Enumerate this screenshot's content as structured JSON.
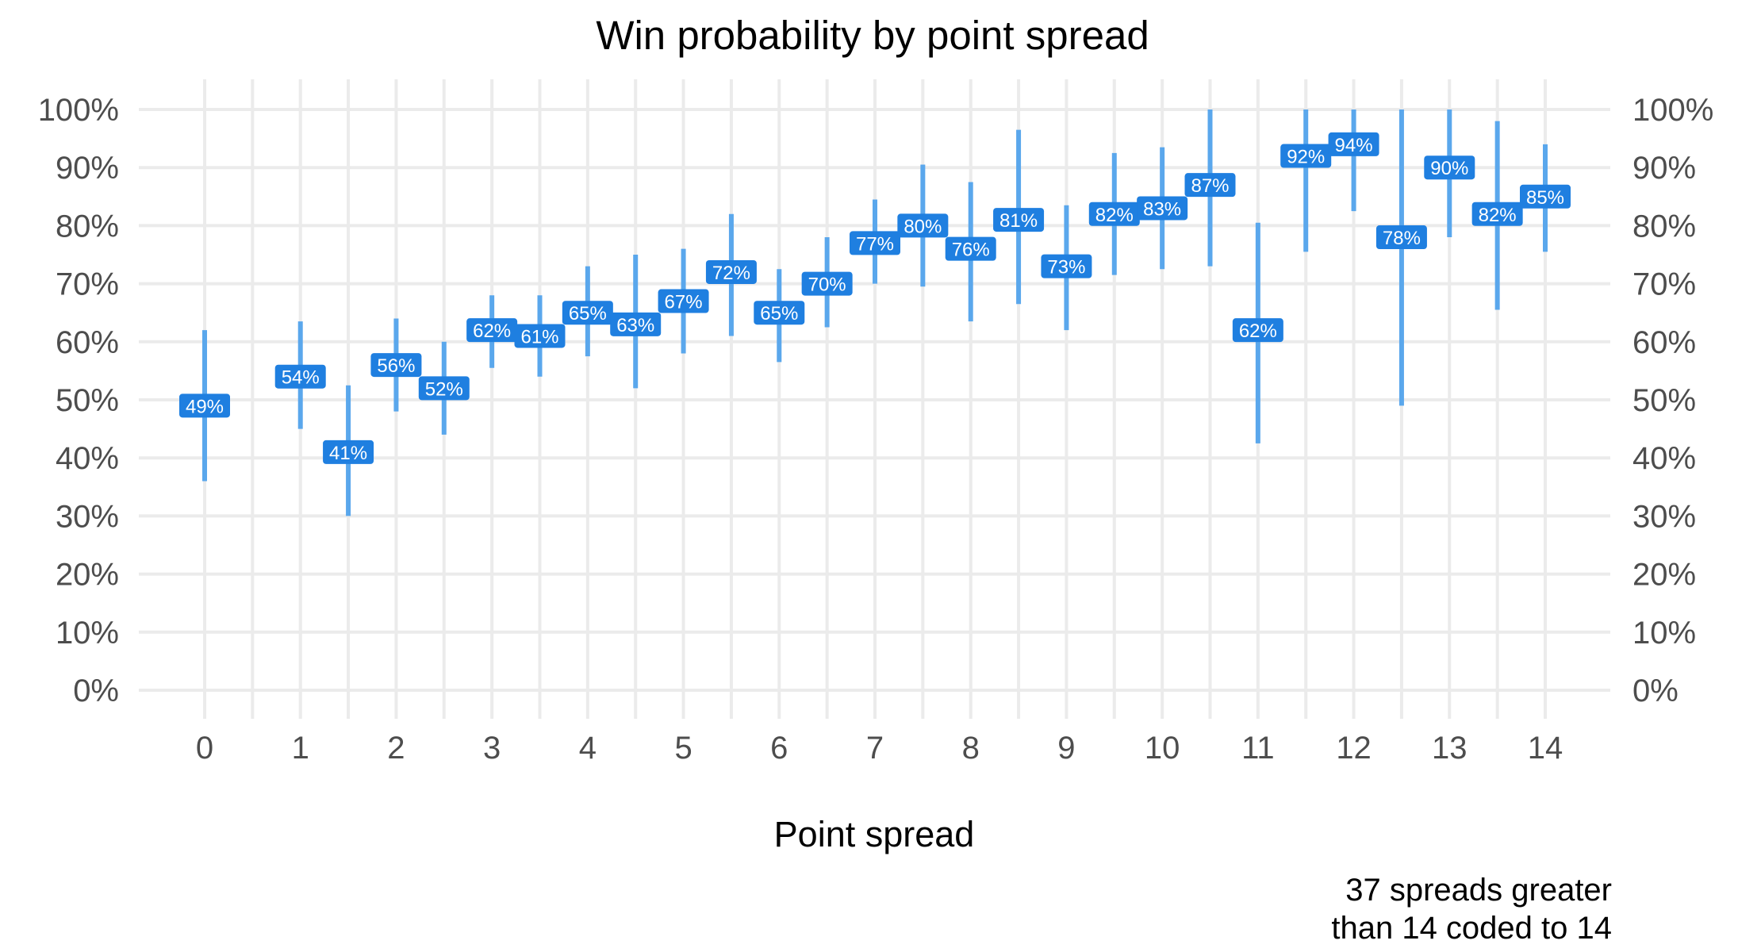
{
  "chart_data": {
    "type": "errorbar",
    "title": "Win probability by point spread",
    "xlabel": "Point spread",
    "ylabel": "",
    "caption": [
      "37 spreads greater",
      "than 14 coded to 14"
    ],
    "x_ticks": [
      0,
      1,
      2,
      3,
      4,
      5,
      6,
      7,
      8,
      9,
      10,
      11,
      12,
      13,
      14
    ],
    "y_ticks": [
      "0%",
      "10%",
      "20%",
      "30%",
      "40%",
      "50%",
      "60%",
      "70%",
      "80%",
      "90%",
      "100%"
    ],
    "ylim": [
      0,
      1
    ],
    "xlim": [
      -0.5,
      14.5
    ],
    "y_axis_both_sides": true,
    "grid": true,
    "colors": {
      "bar": "#5aa7ec",
      "label_fill": "#1f7fe0",
      "label_text": "#ffffff"
    },
    "points": [
      {
        "x": 0,
        "y": 0.49,
        "lo": 0.36,
        "hi": 0.62,
        "label": "49%"
      },
      {
        "x": 1,
        "y": 0.54,
        "lo": 0.45,
        "hi": 0.635,
        "label": "54%"
      },
      {
        "x": 1.5,
        "y": 0.41,
        "lo": 0.3,
        "hi": 0.525,
        "label": "41%"
      },
      {
        "x": 2,
        "y": 0.56,
        "lo": 0.48,
        "hi": 0.64,
        "label": "56%"
      },
      {
        "x": 2.5,
        "y": 0.52,
        "lo": 0.44,
        "hi": 0.6,
        "label": "52%"
      },
      {
        "x": 3,
        "y": 0.62,
        "lo": 0.555,
        "hi": 0.68,
        "label": "62%"
      },
      {
        "x": 3.5,
        "y": 0.61,
        "lo": 0.54,
        "hi": 0.68,
        "label": "61%"
      },
      {
        "x": 4,
        "y": 0.65,
        "lo": 0.575,
        "hi": 0.73,
        "label": "65%"
      },
      {
        "x": 4.5,
        "y": 0.63,
        "lo": 0.52,
        "hi": 0.75,
        "label": "63%"
      },
      {
        "x": 5,
        "y": 0.67,
        "lo": 0.58,
        "hi": 0.76,
        "label": "67%"
      },
      {
        "x": 5.5,
        "y": 0.72,
        "lo": 0.61,
        "hi": 0.82,
        "label": "72%"
      },
      {
        "x": 6,
        "y": 0.65,
        "lo": 0.565,
        "hi": 0.725,
        "label": "65%"
      },
      {
        "x": 6.5,
        "y": 0.7,
        "lo": 0.625,
        "hi": 0.78,
        "label": "70%"
      },
      {
        "x": 7,
        "y": 0.77,
        "lo": 0.7,
        "hi": 0.845,
        "label": "77%"
      },
      {
        "x": 7.5,
        "y": 0.8,
        "lo": 0.695,
        "hi": 0.905,
        "label": "80%"
      },
      {
        "x": 8,
        "y": 0.76,
        "lo": 0.635,
        "hi": 0.875,
        "label": "76%"
      },
      {
        "x": 8.5,
        "y": 0.81,
        "lo": 0.665,
        "hi": 0.965,
        "label": "81%"
      },
      {
        "x": 9,
        "y": 0.73,
        "lo": 0.62,
        "hi": 0.835,
        "label": "73%"
      },
      {
        "x": 9.5,
        "y": 0.82,
        "lo": 0.715,
        "hi": 0.925,
        "label": "82%"
      },
      {
        "x": 10,
        "y": 0.83,
        "lo": 0.725,
        "hi": 0.935,
        "label": "83%"
      },
      {
        "x": 10.5,
        "y": 0.87,
        "lo": 0.73,
        "hi": 1.0,
        "label": "87%"
      },
      {
        "x": 11,
        "y": 0.62,
        "lo": 0.425,
        "hi": 0.805,
        "label": "62%"
      },
      {
        "x": 11.5,
        "y": 0.92,
        "lo": 0.755,
        "hi": 1.0,
        "label": "92%"
      },
      {
        "x": 12,
        "y": 0.94,
        "lo": 0.825,
        "hi": 1.0,
        "label": "94%"
      },
      {
        "x": 12.5,
        "y": 0.78,
        "lo": 0.49,
        "hi": 1.0,
        "label": "78%"
      },
      {
        "x": 13,
        "y": 0.9,
        "lo": 0.78,
        "hi": 1.0,
        "label": "90%"
      },
      {
        "x": 13.5,
        "y": 0.82,
        "lo": 0.655,
        "hi": 0.98,
        "label": "82%"
      },
      {
        "x": 14,
        "y": 0.85,
        "lo": 0.755,
        "hi": 0.94,
        "label": "85%"
      }
    ]
  }
}
